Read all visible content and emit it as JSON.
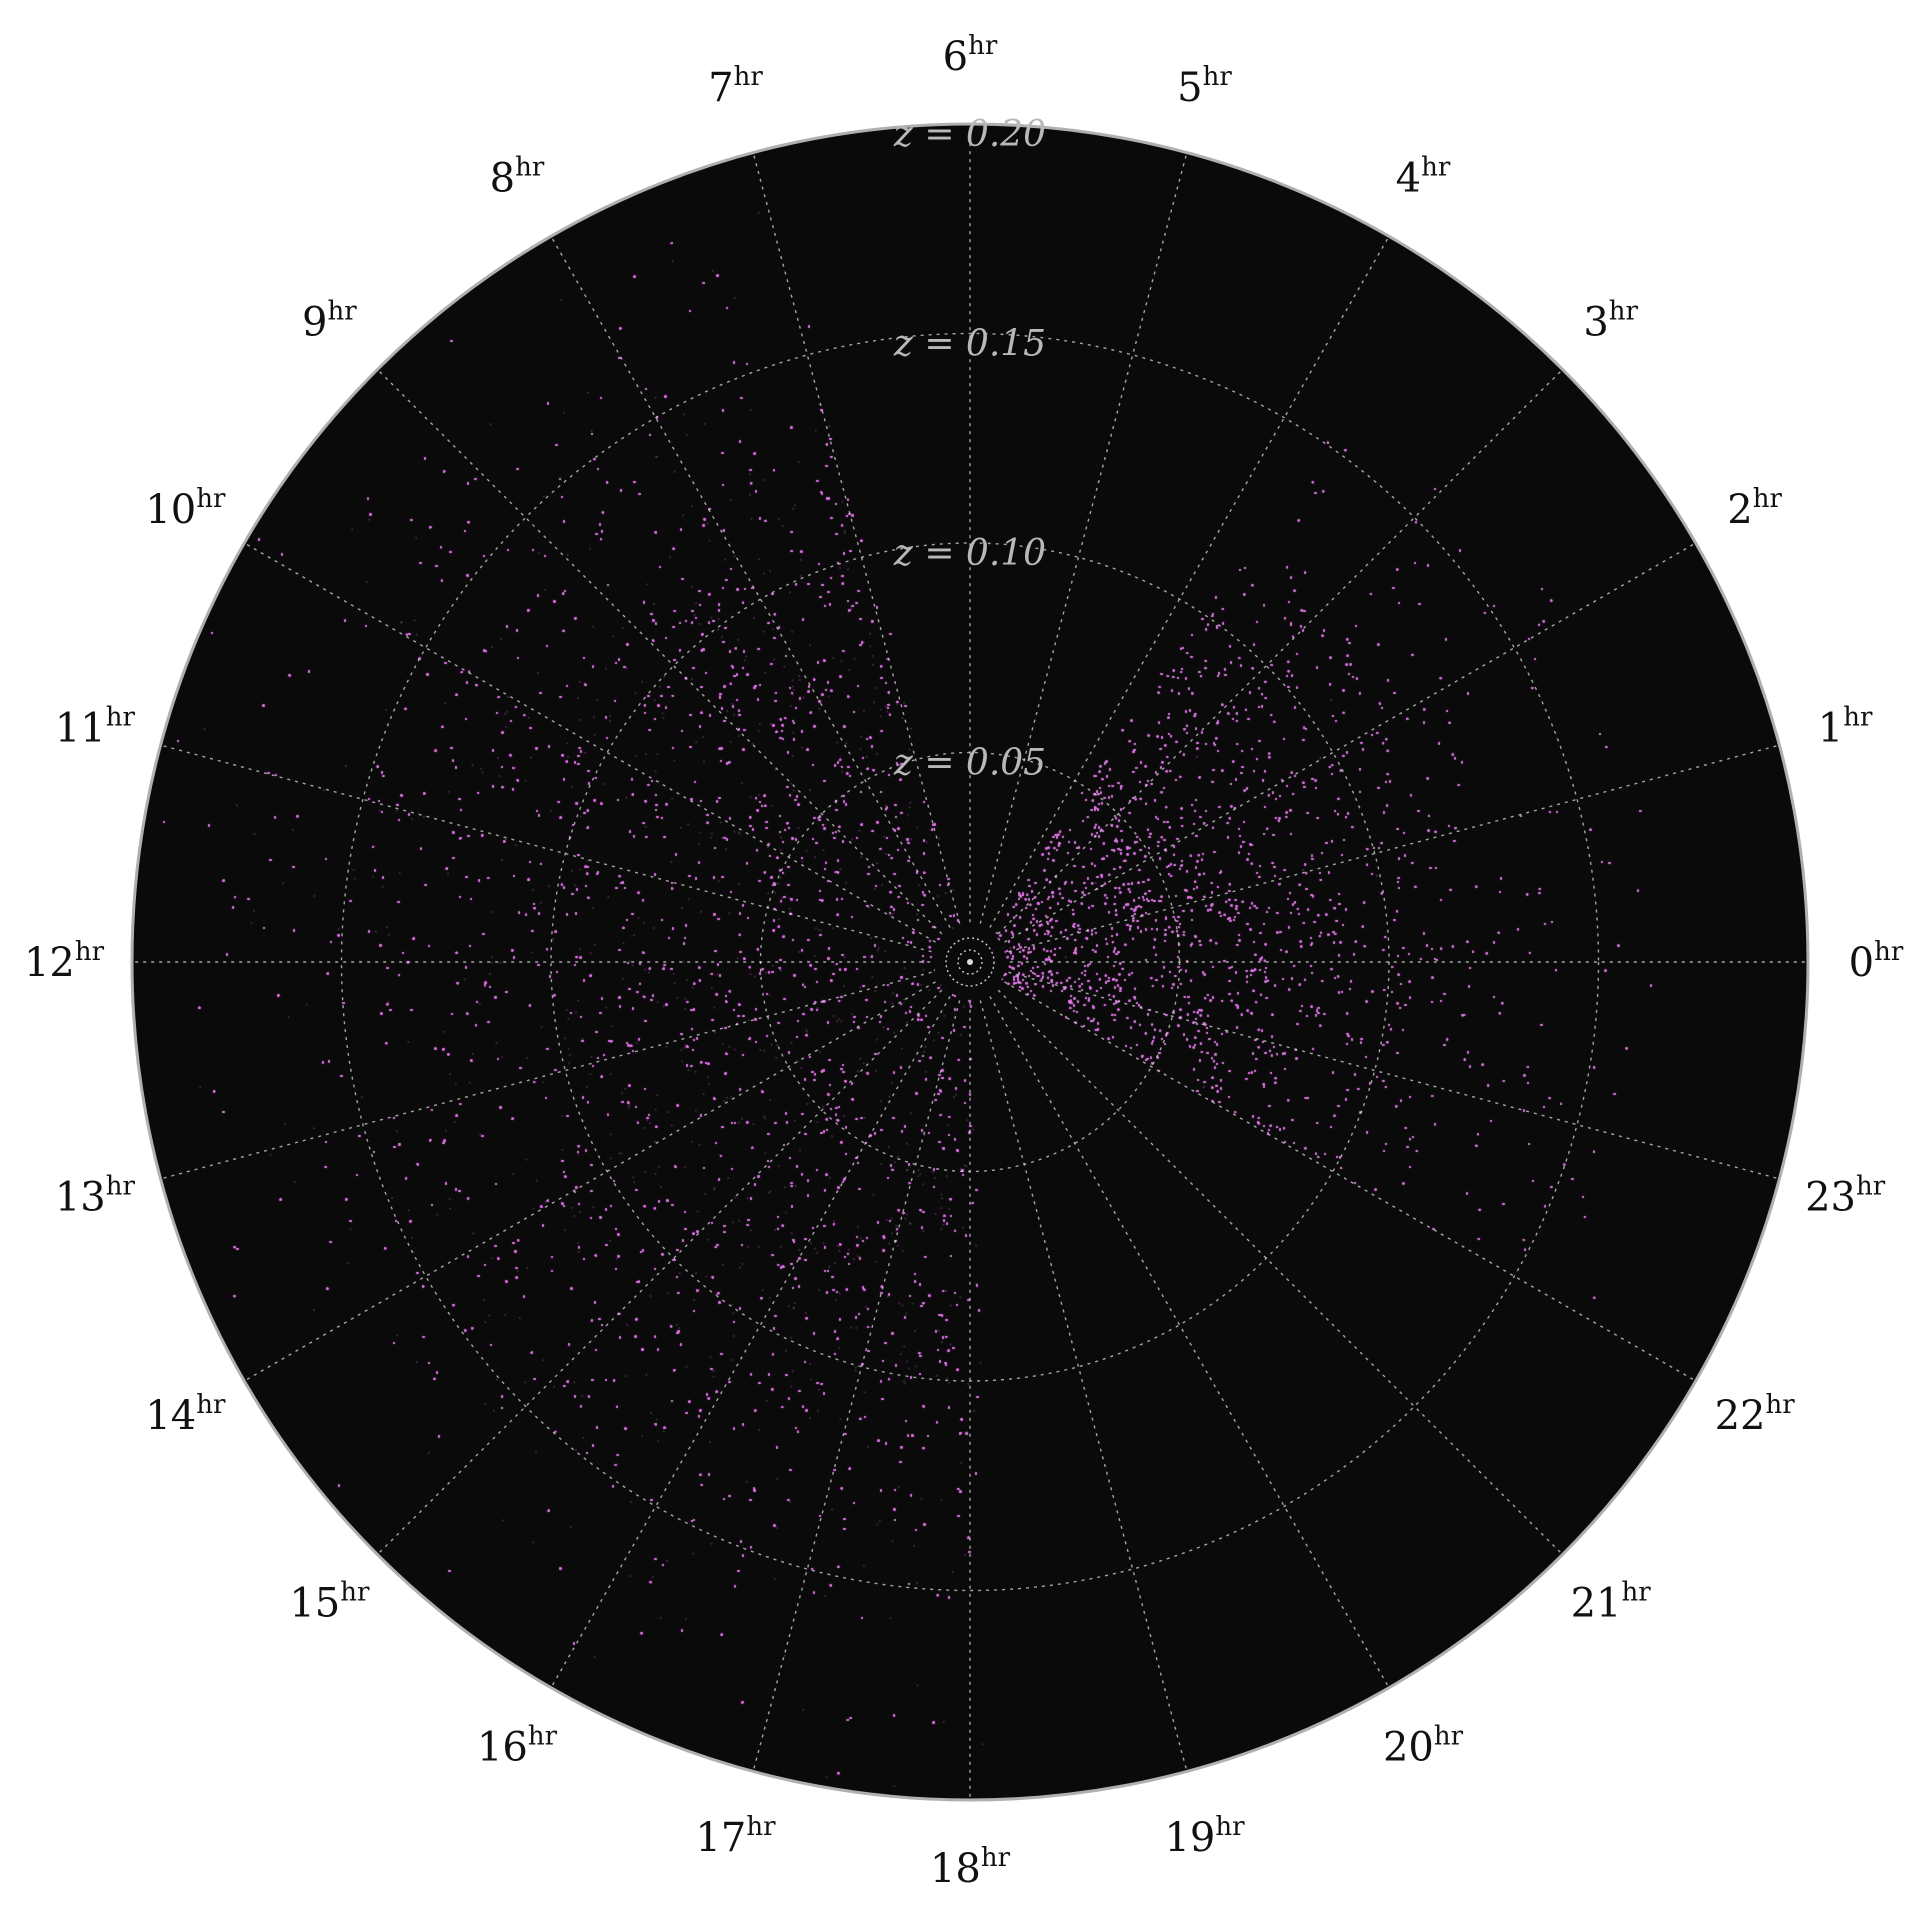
{
  "chart_data": {
    "type": "scatter",
    "projection": "polar",
    "title": "",
    "angular_axis": {
      "unit": "hr",
      "tick_labels": [
        "0",
        "1",
        "2",
        "3",
        "4",
        "5",
        "6",
        "7",
        "8",
        "9",
        "10",
        "11",
        "12",
        "13",
        "14",
        "15",
        "16",
        "17",
        "18",
        "19",
        "20",
        "21",
        "22",
        "23"
      ],
      "zero_position": "right",
      "direction": "counter-clockwise"
    },
    "radial_axis": {
      "variable": "z",
      "range": [
        0,
        0.2
      ],
      "tick_values": [
        0.05,
        0.1,
        0.15,
        0.2
      ],
      "tick_labels": [
        "z = 0.05",
        "z = 0.10",
        "z = 0.15",
        "z = 0.20"
      ],
      "label_position": "top"
    },
    "grid": true,
    "background": "#0a0a0a",
    "point_color": "#e67ef0",
    "series": [
      {
        "point_density_approx": "very dense, white-saturated core",
        "ra_range_hr": [
          6.9,
          18.1
        ],
        "z_range": [
          0.002,
          0.2
        ],
        "peak_z": 0.09,
        "peak_ra_hr": 12.5
      },
      {
        "point_density_approx": "moderate, filamentary",
        "ra_range_hr": [
          22.0,
          3.8
        ],
        "z_range": [
          0.005,
          0.17
        ],
        "peak_z": 0.06,
        "peak_ra_hr": 0.3
      }
    ]
  },
  "colors": {
    "background": "#0a0a0a",
    "grid": "#d8d8d8",
    "radial_label": "#b8b8b8",
    "points": "#e67ef0",
    "outer_ring": "#b0b0b0"
  }
}
